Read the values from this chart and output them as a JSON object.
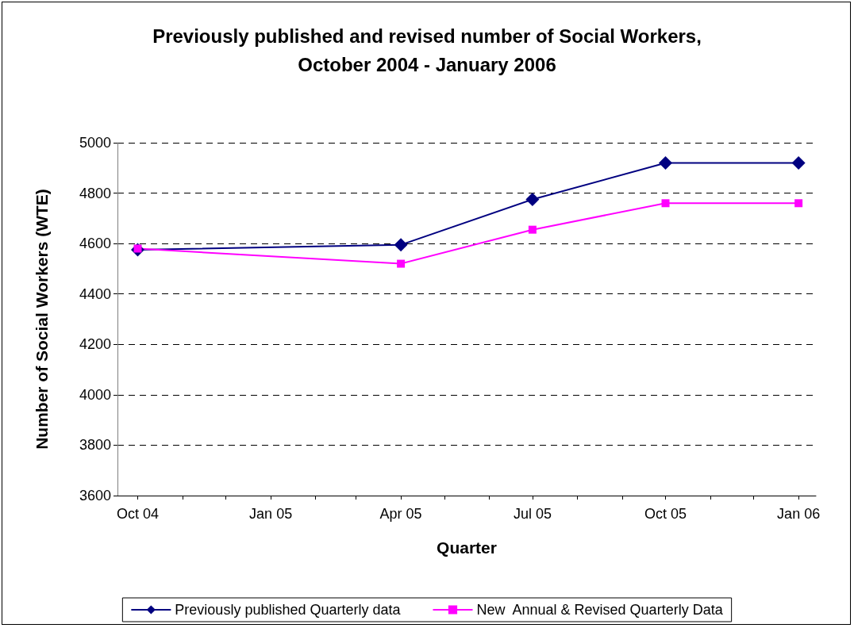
{
  "chart_data": {
    "type": "line",
    "title": "Previously published and revised number of Social Workers,\nOctober 2004 - January 2006",
    "xlabel": "Quarter",
    "ylabel": "Number of Social Workers (WTE)",
    "x": [
      "2004-10",
      "2005-04",
      "2005-07",
      "2005-10",
      "2006-01"
    ],
    "series": [
      {
        "name": "Previously published Quarterly data",
        "color": "#000080",
        "marker": "diamond",
        "values": [
          4575,
          4595,
          4775,
          4920,
          4920
        ]
      },
      {
        "name": "New  Annual & Revised Quarterly Data",
        "color": "#ff00ff",
        "marker": "square",
        "values": [
          4580,
          4520,
          4655,
          4760,
          4760
        ]
      }
    ],
    "xlim": [
      "2004-09-17",
      "2006-01-13"
    ],
    "xticks": [
      {
        "value": "2004-10",
        "label": "Oct 04"
      },
      {
        "value": "2004-11",
        "label": null
      },
      {
        "value": "2004-12",
        "label": null
      },
      {
        "value": "2005-01",
        "label": "Jan 05"
      },
      {
        "value": "2005-02",
        "label": null
      },
      {
        "value": "2005-03",
        "label": null
      },
      {
        "value": "2005-04",
        "label": "Apr 05"
      },
      {
        "value": "2005-05",
        "label": null
      },
      {
        "value": "2005-06",
        "label": null
      },
      {
        "value": "2005-07",
        "label": "Jul 05"
      },
      {
        "value": "2005-08",
        "label": null
      },
      {
        "value": "2005-09",
        "label": null
      },
      {
        "value": "2005-10",
        "label": "Oct 05"
      },
      {
        "value": "2005-11",
        "label": null
      },
      {
        "value": "2005-12",
        "label": null
      },
      {
        "value": "2006-01",
        "label": "Jan 06"
      }
    ],
    "ylim": [
      3600,
      5000
    ],
    "yticks": [
      3600,
      3800,
      4000,
      4200,
      4400,
      4600,
      4800,
      5000
    ],
    "grid": "y",
    "legend": "bottom",
    "line_style": "solid"
  }
}
